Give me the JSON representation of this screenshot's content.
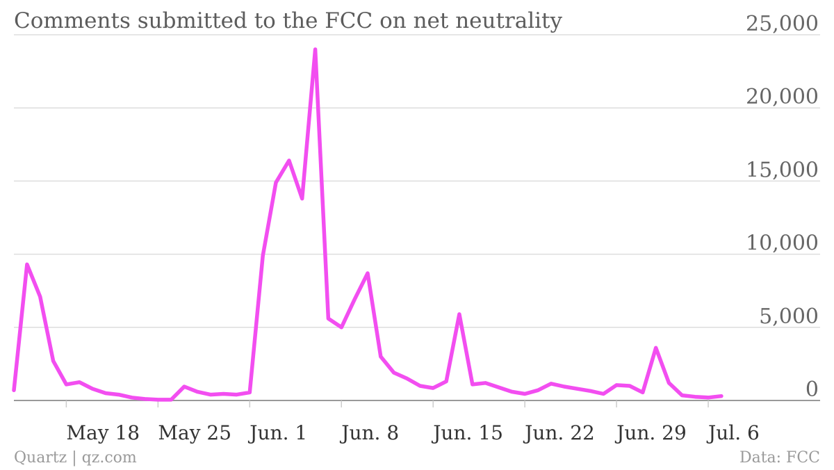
{
  "header": {
    "title": "Comments submitted to the FCC on net neutrality"
  },
  "footer": {
    "credit": "Quartz | qz.com",
    "source": "Data: FCC"
  },
  "colors": {
    "line": "#f24ef0",
    "grid": "#dddddd",
    "axis": "#999999"
  },
  "chart_data": {
    "type": "line",
    "title": "Comments submitted to the FCC on net neutrality",
    "xlabel": "",
    "ylabel": "",
    "x_start": "2014-05-14",
    "x_tick_labels": [
      "May 18",
      "May 25",
      "Jun. 1",
      "Jun. 8",
      "Jun. 15",
      "Jun. 22",
      "Jun. 29",
      "Jul. 6"
    ],
    "x_tick_dates": [
      "2014-05-18",
      "2014-05-25",
      "2014-06-01",
      "2014-06-08",
      "2014-06-15",
      "2014-06-22",
      "2014-06-29",
      "2014-07-06"
    ],
    "y_ticks": [
      0,
      5000,
      10000,
      15000,
      20000,
      25000
    ],
    "y_tick_labels": [
      "0",
      "5,000",
      "10,000",
      "15,000",
      "20,000",
      "25,000"
    ],
    "ylim": [
      0,
      25000
    ],
    "grid": true,
    "series": [
      {
        "x": [
          "2014-05-14",
          "2014-05-15",
          "2014-05-16",
          "2014-05-17",
          "2014-05-18",
          "2014-05-19",
          "2014-05-20",
          "2014-05-21",
          "2014-05-22",
          "2014-05-23",
          "2014-05-24",
          "2014-05-25",
          "2014-05-26",
          "2014-05-27",
          "2014-05-28",
          "2014-05-29",
          "2014-05-30",
          "2014-05-31",
          "2014-06-01",
          "2014-06-02",
          "2014-06-03",
          "2014-06-04",
          "2014-06-05",
          "2014-06-06",
          "2014-06-07",
          "2014-06-08",
          "2014-06-09",
          "2014-06-10",
          "2014-06-11",
          "2014-06-12",
          "2014-06-13",
          "2014-06-14",
          "2014-06-15",
          "2014-06-16",
          "2014-06-17",
          "2014-06-18",
          "2014-06-19",
          "2014-06-20",
          "2014-06-21",
          "2014-06-22",
          "2014-06-23",
          "2014-06-24",
          "2014-06-25",
          "2014-06-26",
          "2014-06-27",
          "2014-06-28",
          "2014-06-29",
          "2014-06-30",
          "2014-07-01",
          "2014-07-02",
          "2014-07-03",
          "2014-07-04",
          "2014-07-05",
          "2014-07-06",
          "2014-07-07"
        ],
        "values": [
          700,
          9300,
          7100,
          2700,
          1100,
          1250,
          800,
          500,
          400,
          200,
          100,
          50,
          50,
          950,
          600,
          400,
          450,
          400,
          550,
          9900,
          14900,
          16400,
          13800,
          24000,
          5600,
          5000,
          6900,
          8700,
          3000,
          1900,
          1500,
          1000,
          850,
          1300,
          5900,
          1100,
          1200,
          900,
          600,
          450,
          700,
          1150,
          950,
          800,
          650,
          450,
          1050,
          1000,
          550,
          3600,
          1200,
          350,
          250,
          200,
          300
        ]
      }
    ]
  }
}
